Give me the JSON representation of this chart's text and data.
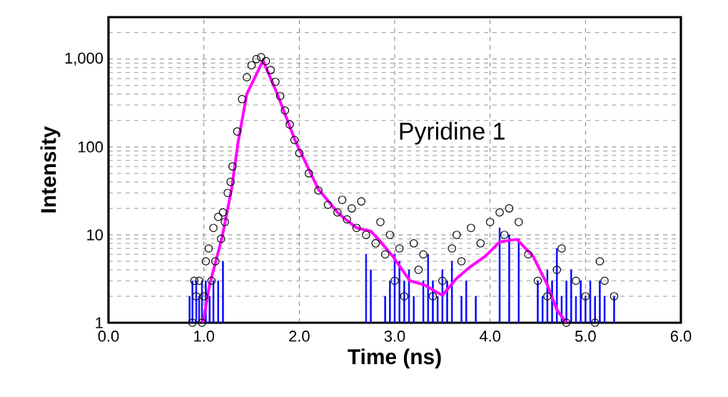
{
  "chart_data": {
    "type": "scatter",
    "xlabel": "Time (ns)",
    "ylabel": "Intensity",
    "log": "y",
    "grid": true,
    "xlim": [
      0,
      6
    ],
    "ylim": [
      1,
      3000
    ],
    "xticks": [
      {
        "value": 0,
        "label": "0.0"
      },
      {
        "value": 1,
        "label": "1.0"
      },
      {
        "value": 2,
        "label": "2.0"
      },
      {
        "value": 3,
        "label": "3.0"
      },
      {
        "value": 4,
        "label": "4.0"
      },
      {
        "value": 5,
        "label": "5.0"
      },
      {
        "value": 6,
        "label": "6.0"
      }
    ],
    "yticks": [
      1,
      10,
      100,
      {
        "value": 1000,
        "label": "1,000"
      }
    ],
    "annotations": [
      "Pyridine 1"
    ],
    "series": [
      {
        "type": "bar",
        "color": "#0000ff",
        "x": [
          0.85,
          0.88,
          0.92,
          0.95,
          0.98,
          1.02,
          1.06,
          1.1,
          1.15,
          1.2,
          2.7,
          2.75,
          2.9,
          2.95,
          3.0,
          3.05,
          3.1,
          3.15,
          3.2,
          3.3,
          3.35,
          3.4,
          3.45,
          3.5,
          3.55,
          3.6,
          3.7,
          3.75,
          3.85,
          4.1,
          4.2,
          4.3,
          4.5,
          4.55,
          4.6,
          4.65,
          4.7,
          4.75,
          4.8,
          4.85,
          4.9,
          4.95,
          5.0,
          5.05,
          5.1,
          5.15,
          5.2,
          5.3
        ],
        "values": [
          2,
          3,
          3,
          2,
          3,
          3,
          2,
          3,
          3,
          5,
          6,
          4,
          2,
          3,
          6,
          5,
          3,
          4,
          2,
          3,
          6,
          3,
          2,
          4,
          3,
          5,
          2,
          3,
          2,
          12,
          10,
          9,
          3,
          2,
          4,
          3,
          7,
          2,
          3,
          4,
          2,
          3,
          2,
          3,
          2,
          3,
          2,
          2
        ]
      },
      {
        "color": "#000000",
        "marker": "circle",
        "x": [
          0.88,
          0.9,
          0.92,
          0.95,
          0.98,
          1.0,
          1.02,
          1.05,
          1.08,
          1.1,
          1.12,
          1.15,
          1.18,
          1.2,
          1.22,
          1.25,
          1.28,
          1.3,
          1.35,
          1.4,
          1.45,
          1.5,
          1.55,
          1.6,
          1.65,
          1.7,
          1.75,
          1.8,
          1.85,
          1.9,
          1.95,
          2.0,
          2.1,
          2.2,
          2.3,
          2.4,
          2.45,
          2.5,
          2.55,
          2.6,
          2.65,
          2.7,
          2.8,
          2.85,
          2.9,
          2.95,
          3.0,
          3.05,
          3.1,
          3.2,
          3.25,
          3.3,
          3.4,
          3.5,
          3.6,
          3.65,
          3.7,
          3.8,
          3.9,
          4.0,
          4.1,
          4.15,
          4.2,
          4.3,
          4.4,
          4.5,
          4.6,
          4.7,
          4.75,
          4.8,
          4.9,
          5.0,
          5.1,
          5.15,
          5.2,
          5.3
        ],
        "values": [
          1,
          3,
          2,
          3,
          1,
          2,
          5,
          7,
          3,
          12,
          5,
          16,
          9,
          18,
          14,
          30,
          40,
          60,
          150,
          350,
          620,
          850,
          1000,
          1050,
          950,
          750,
          550,
          380,
          260,
          180,
          120,
          85,
          50,
          32,
          22,
          18,
          25,
          15,
          20,
          12,
          24,
          10,
          8,
          14,
          6,
          10,
          3,
          7,
          2,
          8,
          4,
          6,
          2,
          3,
          7,
          10,
          5,
          12,
          8,
          14,
          18,
          10,
          20,
          14,
          6,
          3,
          2,
          4,
          7,
          1,
          3,
          2,
          1,
          5,
          3,
          2
        ]
      },
      {
        "type": "line",
        "color": "#ff00ff",
        "x": [
          0.99,
          1.06,
          1.19,
          1.29,
          1.36,
          1.45,
          1.62,
          1.77,
          1.96,
          2.2,
          2.41,
          2.5,
          2.6,
          2.75,
          2.83,
          2.98,
          3.16,
          3.31,
          3.5,
          3.65,
          3.8,
          3.95,
          4.1,
          4.28,
          4.45,
          4.6,
          4.7,
          4.8
        ],
        "values": [
          1,
          2.7,
          9.3,
          33,
          116,
          400,
          960,
          400,
          116,
          33,
          17.6,
          14.6,
          12,
          11,
          8.9,
          5.7,
          3,
          2.7,
          2.05,
          3.2,
          4.4,
          5.7,
          8.3,
          8.9,
          5.7,
          2.7,
          1.4,
          1
        ]
      }
    ]
  }
}
